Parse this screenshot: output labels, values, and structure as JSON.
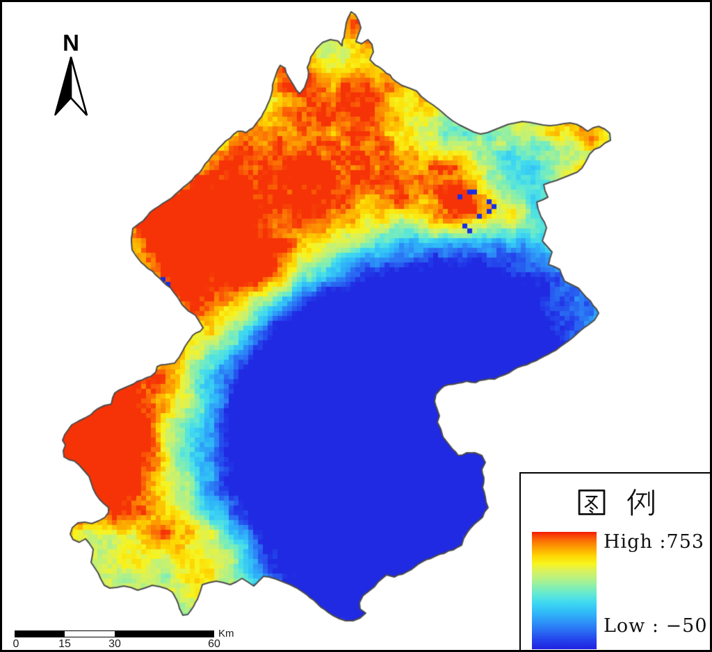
{
  "north_arrow": {
    "label": "N"
  },
  "scale_bar": {
    "ticks": [
      "0",
      "15",
      "30",
      "60"
    ],
    "unit": "Km"
  },
  "legend": {
    "title": "图 例",
    "high_label": "High :753",
    "low_label": "Low : −50",
    "high_value": 753,
    "low_value": -50
  },
  "map": {
    "cell": 7,
    "seed": 20240613,
    "base": 0.55,
    "outline_color": "#4c4c4c",
    "forced_cell_color": "#1b2de4",
    "ramp": [
      [
        0.0,
        "#1f22df"
      ],
      [
        0.08,
        "#2443ec"
      ],
      [
        0.16,
        "#2a6ff3"
      ],
      [
        0.24,
        "#2e97f8"
      ],
      [
        0.32,
        "#31bcf8"
      ],
      [
        0.4,
        "#40d9f0"
      ],
      [
        0.47,
        "#62e9d4"
      ],
      [
        0.54,
        "#8cefa9"
      ],
      [
        0.6,
        "#b5f184"
      ],
      [
        0.67,
        "#daf25c"
      ],
      [
        0.73,
        "#f8f41e"
      ],
      [
        0.79,
        "#fed903"
      ],
      [
        0.85,
        "#fdab02"
      ],
      [
        0.91,
        "#fc7d04"
      ],
      [
        0.96,
        "#f94d07"
      ],
      [
        1.0,
        "#f21a05"
      ]
    ],
    "noise": {
      "octaves": [
        {
          "scale": 48,
          "amp": 0.09
        },
        {
          "scale": 16,
          "amp": 0.08
        }
      ],
      "cell_amp": 0.05
    },
    "fields": [
      {
        "pts": [
          [
            115,
            640
          ],
          [
            200,
            560
          ],
          [
            290,
            480
          ],
          [
            380,
            400
          ],
          [
            470,
            330
          ],
          [
            560,
            275
          ],
          [
            620,
            255
          ]
        ],
        "sigma": 75,
        "amp": 0.5
      },
      {
        "pts": [
          [
            260,
            300
          ],
          [
            340,
            250
          ],
          [
            420,
            200
          ],
          [
            500,
            150
          ],
          [
            545,
            110
          ]
        ],
        "sigma": 65,
        "amp": 0.32
      },
      {
        "pts": [
          [
            135,
            655
          ],
          [
            185,
            700
          ],
          [
            245,
            755
          ],
          [
            300,
            800
          ]
        ],
        "sigma": 55,
        "amp": 0.42
      },
      {
        "pts": [
          [
            125,
            615
          ]
        ],
        "sigma": 50,
        "amp": 0.45
      },
      {
        "pts": [
          [
            240,
            320
          ],
          [
            300,
            350
          ],
          [
            350,
            390
          ]
        ],
        "sigma": 55,
        "amp": 0.35
      },
      {
        "pts": [
          [
            663,
            298
          ]
        ],
        "sigma": 34,
        "amp": 0.55
      },
      {
        "pts": [
          [
            737,
            315
          ]
        ],
        "sigma": 26,
        "amp": 0.3
      },
      {
        "pts": [
          [
            800,
            345
          ]
        ],
        "sigma": 20,
        "amp": 0.28
      },
      {
        "pts": [
          [
            830,
            250
          ]
        ],
        "sigma": 22,
        "amp": 0.3
      },
      {
        "pts": [
          [
            856,
            196
          ]
        ],
        "sigma": 18,
        "amp": 0.28
      },
      {
        "pts": [
          [
            760,
            185
          ],
          [
            800,
            188
          ],
          [
            840,
            182
          ]
        ],
        "sigma": 20,
        "amp": 0.25
      },
      {
        "pts": [
          [
            420,
            105
          ]
        ],
        "sigma": 25,
        "amp": 0.3
      },
      {
        "pts": [
          [
            500,
            35
          ]
        ],
        "sigma": 18,
        "amp": 0.3
      },
      {
        "pts": [
          [
            510,
            630
          ]
        ],
        "sigma": 170,
        "amp": -0.62
      },
      {
        "pts": [
          [
            430,
            560
          ]
        ],
        "sigma": 110,
        "amp": -0.45
      },
      {
        "pts": [
          [
            560,
            720
          ]
        ],
        "sigma": 130,
        "amp": -0.5
      },
      {
        "pts": [
          [
            480,
            470
          ]
        ],
        "sigma": 80,
        "amp": -0.35
      },
      {
        "pts": [
          [
            640,
            460
          ]
        ],
        "sigma": 85,
        "amp": -0.4
      },
      {
        "pts": [
          [
            690,
            520
          ]
        ],
        "sigma": 80,
        "amp": -0.35
      },
      {
        "pts": [
          [
            740,
            390
          ]
        ],
        "sigma": 130,
        "amp": -0.18
      },
      {
        "pts": [
          [
            800,
            450
          ]
        ],
        "sigma": 80,
        "amp": -0.15
      },
      {
        "pts": [
          [
            690,
            240
          ]
        ],
        "sigma": 60,
        "amp": -0.2
      },
      {
        "pts": [
          [
            490,
            840
          ]
        ],
        "sigma": 70,
        "amp": -0.3
      },
      {
        "pts": [
          [
            610,
            180
          ]
        ],
        "sigma": 45,
        "amp": -0.15
      }
    ],
    "forced_cells": [
      [
        676,
        276
      ],
      [
        684,
        274
      ],
      [
        660,
        281
      ],
      [
        700,
        291
      ],
      [
        707,
        299
      ],
      [
        703,
        307
      ],
      [
        689,
        311
      ],
      [
        666,
        327
      ],
      [
        673,
        331
      ],
      [
        232,
        404
      ],
      [
        240,
        407
      ],
      [
        235,
        413
      ],
      [
        243,
        412
      ]
    ],
    "boundary": [
      [
        505,
        17
      ],
      [
        511,
        21
      ],
      [
        516,
        30
      ],
      [
        519,
        40
      ],
      [
        515,
        51
      ],
      [
        512,
        60
      ],
      [
        520,
        63
      ],
      [
        529,
        57
      ],
      [
        535,
        64
      ],
      [
        537,
        75
      ],
      [
        532,
        86
      ],
      [
        540,
        94
      ],
      [
        551,
        101
      ],
      [
        561,
        108
      ],
      [
        569,
        117
      ],
      [
        578,
        123
      ],
      [
        589,
        127
      ],
      [
        599,
        131
      ],
      [
        606,
        139
      ],
      [
        615,
        146
      ],
      [
        624,
        152
      ],
      [
        633,
        159
      ],
      [
        642,
        167
      ],
      [
        651,
        174
      ],
      [
        661,
        180
      ],
      [
        671,
        185
      ],
      [
        681,
        190
      ],
      [
        691,
        193
      ],
      [
        701,
        191
      ],
      [
        711,
        187
      ],
      [
        721,
        183
      ],
      [
        731,
        179
      ],
      [
        741,
        177
      ],
      [
        751,
        175
      ],
      [
        761,
        176
      ],
      [
        771,
        178
      ],
      [
        781,
        180
      ],
      [
        791,
        181
      ],
      [
        801,
        180
      ],
      [
        811,
        178
      ],
      [
        820,
        177
      ],
      [
        829,
        179
      ],
      [
        837,
        183
      ],
      [
        845,
        189
      ],
      [
        853,
        184
      ],
      [
        861,
        182
      ],
      [
        870,
        186
      ],
      [
        877,
        192
      ],
      [
        878,
        202
      ],
      [
        870,
        206
      ],
      [
        863,
        212
      ],
      [
        855,
        215
      ],
      [
        848,
        222
      ],
      [
        843,
        232
      ],
      [
        837,
        242
      ],
      [
        830,
        248
      ],
      [
        820,
        252
      ],
      [
        810,
        256
      ],
      [
        800,
        260
      ],
      [
        790,
        263
      ],
      [
        782,
        266
      ],
      [
        784,
        275
      ],
      [
        788,
        284
      ],
      [
        780,
        288
      ],
      [
        772,
        291
      ],
      [
        774,
        301
      ],
      [
        778,
        312
      ],
      [
        783,
        320
      ],
      [
        786,
        328
      ],
      [
        783,
        338
      ],
      [
        780,
        347
      ],
      [
        787,
        355
      ],
      [
        794,
        363
      ],
      [
        791,
        372
      ],
      [
        789,
        381
      ],
      [
        797,
        384
      ],
      [
        805,
        388
      ],
      [
        808,
        396
      ],
      [
        812,
        405
      ],
      [
        822,
        410
      ],
      [
        832,
        415
      ],
      [
        843,
        428
      ],
      [
        853,
        440
      ],
      [
        861,
        451
      ],
      [
        855,
        461
      ],
      [
        846,
        468
      ],
      [
        835,
        476
      ],
      [
        824,
        486
      ],
      [
        812,
        495
      ],
      [
        800,
        504
      ],
      [
        789,
        510
      ],
      [
        777,
        516
      ],
      [
        764,
        522
      ],
      [
        751,
        527
      ],
      [
        738,
        533
      ],
      [
        725,
        540
      ],
      [
        711,
        546
      ],
      [
        697,
        547
      ],
      [
        684,
        551
      ],
      [
        671,
        549
      ],
      [
        658,
        552
      ],
      [
        645,
        554
      ],
      [
        634,
        560
      ],
      [
        627,
        568
      ],
      [
        625,
        578
      ],
      [
        629,
        590
      ],
      [
        632,
        599
      ],
      [
        629,
        608
      ],
      [
        634,
        618
      ],
      [
        637,
        629
      ],
      [
        644,
        638
      ],
      [
        651,
        647
      ],
      [
        659,
        656
      ],
      [
        671,
        652
      ],
      [
        683,
        652
      ],
      [
        693,
        656
      ],
      [
        698,
        666
      ],
      [
        693,
        676
      ],
      [
        696,
        688
      ],
      [
        694,
        702
      ],
      [
        698,
        716
      ],
      [
        702,
        731
      ],
      [
        694,
        745
      ],
      [
        682,
        755
      ],
      [
        672,
        767
      ],
      [
        664,
        785
      ],
      [
        652,
        792
      ],
      [
        639,
        797
      ],
      [
        626,
        801
      ],
      [
        613,
        806
      ],
      [
        601,
        813
      ],
      [
        592,
        820
      ],
      [
        579,
        827
      ],
      [
        567,
        831
      ],
      [
        556,
        828
      ],
      [
        544,
        838
      ],
      [
        531,
        851
      ],
      [
        522,
        858
      ],
      [
        517,
        868
      ],
      [
        518,
        877
      ],
      [
        526,
        883
      ],
      [
        518,
        890
      ],
      [
        508,
        894
      ],
      [
        497,
        894
      ],
      [
        488,
        891
      ],
      [
        478,
        886
      ],
      [
        467,
        878
      ],
      [
        456,
        869
      ],
      [
        446,
        861
      ],
      [
        436,
        853
      ],
      [
        427,
        847
      ],
      [
        417,
        842
      ],
      [
        407,
        838
      ],
      [
        397,
        834
      ],
      [
        387,
        831
      ],
      [
        379,
        830
      ],
      [
        371,
        838
      ],
      [
        365,
        844
      ],
      [
        356,
        838
      ],
      [
        348,
        833
      ],
      [
        340,
        838
      ],
      [
        331,
        842
      ],
      [
        321,
        839
      ],
      [
        311,
        837
      ],
      [
        301,
        839
      ],
      [
        291,
        842
      ],
      [
        288,
        852
      ],
      [
        284,
        863
      ],
      [
        278,
        874
      ],
      [
        270,
        885
      ],
      [
        263,
        886
      ],
      [
        258,
        876
      ],
      [
        254,
        864
      ],
      [
        248,
        853
      ],
      [
        240,
        848
      ],
      [
        230,
        845
      ],
      [
        219,
        843
      ],
      [
        208,
        847
      ],
      [
        198,
        850
      ],
      [
        188,
        846
      ],
      [
        178,
        844
      ],
      [
        168,
        846
      ],
      [
        158,
        847
      ],
      [
        150,
        843
      ],
      [
        145,
        834
      ],
      [
        141,
        825
      ],
      [
        135,
        816
      ],
      [
        131,
        810
      ],
      [
        133,
        799
      ],
      [
        134,
        791
      ],
      [
        128,
        782
      ],
      [
        123,
        776
      ],
      [
        114,
        781
      ],
      [
        105,
        777
      ],
      [
        101,
        769
      ],
      [
        104,
        760
      ],
      [
        112,
        753
      ],
      [
        122,
        752
      ],
      [
        132,
        754
      ],
      [
        142,
        750
      ],
      [
        151,
        745
      ],
      [
        156,
        738
      ],
      [
        156,
        731
      ],
      [
        149,
        725
      ],
      [
        143,
        719
      ],
      [
        138,
        712
      ],
      [
        134,
        704
      ],
      [
        131,
        695
      ],
      [
        128,
        686
      ],
      [
        121,
        678
      ],
      [
        114,
        670
      ],
      [
        107,
        664
      ],
      [
        99,
        662
      ],
      [
        92,
        658
      ],
      [
        91,
        649
      ],
      [
        94,
        641
      ],
      [
        90,
        634
      ],
      [
        93,
        626
      ],
      [
        98,
        619
      ],
      [
        103,
        612
      ],
      [
        112,
        607
      ],
      [
        122,
        602
      ],
      [
        131,
        597
      ],
      [
        140,
        589
      ],
      [
        150,
        584
      ],
      [
        160,
        582
      ],
      [
        162,
        573
      ],
      [
        165,
        566
      ],
      [
        178,
        559
      ],
      [
        192,
        553
      ],
      [
        205,
        547
      ],
      [
        217,
        542
      ],
      [
        224,
        536
      ],
      [
        226,
        528
      ],
      [
        238,
        525
      ],
      [
        251,
        523
      ],
      [
        258,
        514
      ],
      [
        263,
        505
      ],
      [
        270,
        493
      ],
      [
        277,
        483
      ],
      [
        288,
        477
      ],
      [
        292,
        472
      ],
      [
        286,
        462
      ],
      [
        281,
        454
      ],
      [
        271,
        448
      ],
      [
        262,
        439
      ],
      [
        256,
        429
      ],
      [
        249,
        420
      ],
      [
        240,
        411
      ],
      [
        231,
        402
      ],
      [
        224,
        396
      ],
      [
        213,
        387
      ],
      [
        203,
        378
      ],
      [
        196,
        369
      ],
      [
        190,
        360
      ],
      [
        189,
        349
      ],
      [
        190,
        337
      ],
      [
        191,
        329
      ],
      [
        200,
        322
      ],
      [
        211,
        312
      ],
      [
        222,
        301
      ],
      [
        234,
        293
      ],
      [
        247,
        285
      ],
      [
        259,
        274
      ],
      [
        271,
        264
      ],
      [
        281,
        253
      ],
      [
        291,
        243
      ],
      [
        300,
        231
      ],
      [
        310,
        219
      ],
      [
        320,
        208
      ],
      [
        331,
        199
      ],
      [
        342,
        189
      ],
      [
        354,
        191
      ],
      [
        364,
        184
      ],
      [
        372,
        173
      ],
      [
        379,
        162
      ],
      [
        385,
        150
      ],
      [
        390,
        137
      ],
      [
        392,
        122
      ],
      [
        397,
        107
      ],
      [
        403,
        94
      ],
      [
        410,
        98
      ],
      [
        415,
        111
      ],
      [
        423,
        124
      ],
      [
        431,
        135
      ],
      [
        438,
        126
      ],
      [
        443,
        112
      ],
      [
        442,
        97
      ],
      [
        447,
        82
      ],
      [
        455,
        70
      ],
      [
        464,
        61
      ],
      [
        475,
        57
      ],
      [
        486,
        59
      ],
      [
        492,
        66
      ],
      [
        495,
        53
      ],
      [
        497,
        40
      ],
      [
        500,
        27
      ]
    ]
  }
}
